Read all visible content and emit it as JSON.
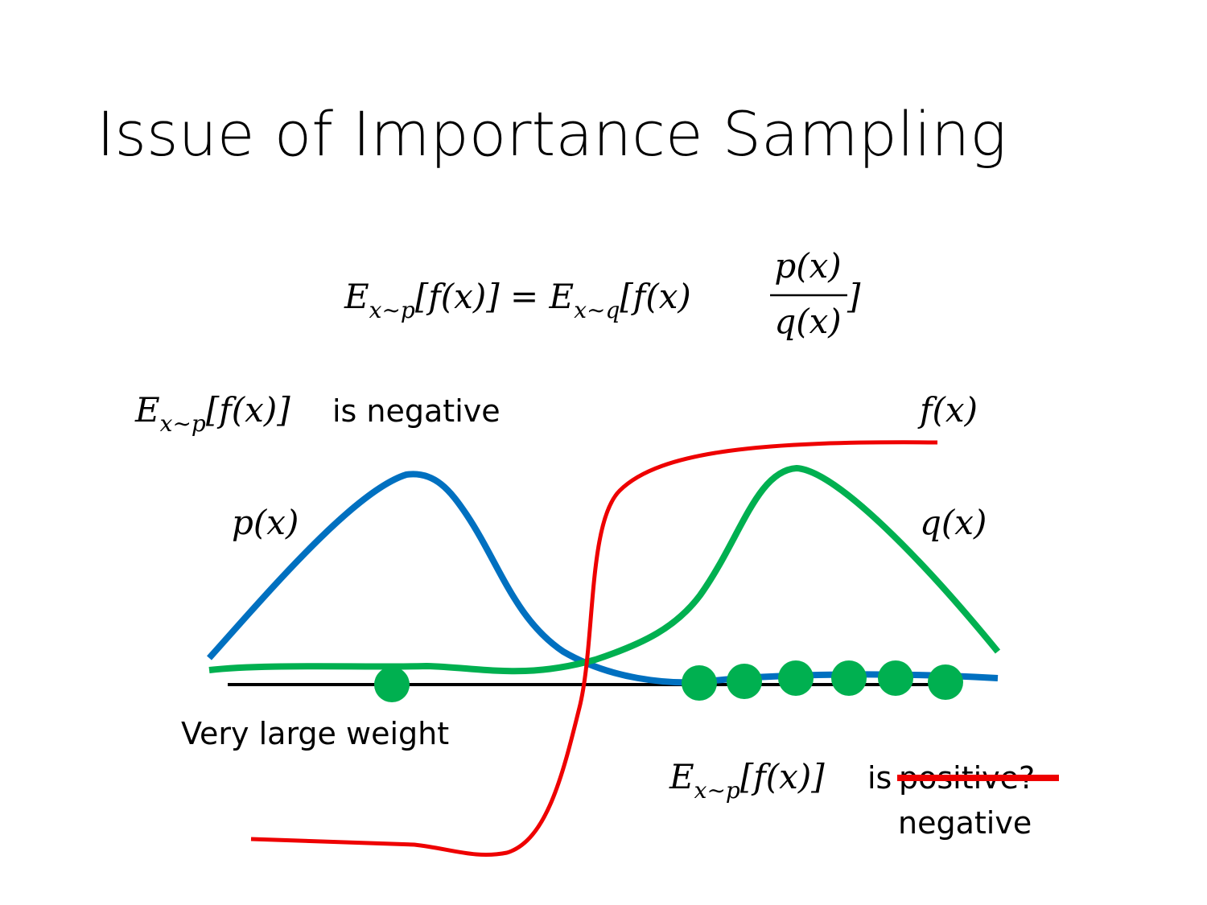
{
  "title": "Issue of Importance Sampling",
  "formula": {
    "lhs_E": "E",
    "lhs_sub": "x∼p",
    "lhs_body": "[f(x)] = ",
    "rhs_E": "E",
    "rhs_sub": "x∼q",
    "rhs_body": "[f(x)",
    "numerator": "p(x)",
    "denominator": "q(x)",
    "close": "]"
  },
  "labels": {
    "top_left": {
      "E": "E",
      "sub": "x∼p",
      "body": "[f(x)]",
      "text": "is negative"
    },
    "f": "f(x)",
    "p": "p(x)",
    "q": "q(x)",
    "weight": "Very large weight",
    "bottom": {
      "E": "E",
      "sub": "x∼p",
      "body": "[f(x)]",
      "text": "is",
      "struck": "positive?",
      "correction": "negative"
    }
  }
}
